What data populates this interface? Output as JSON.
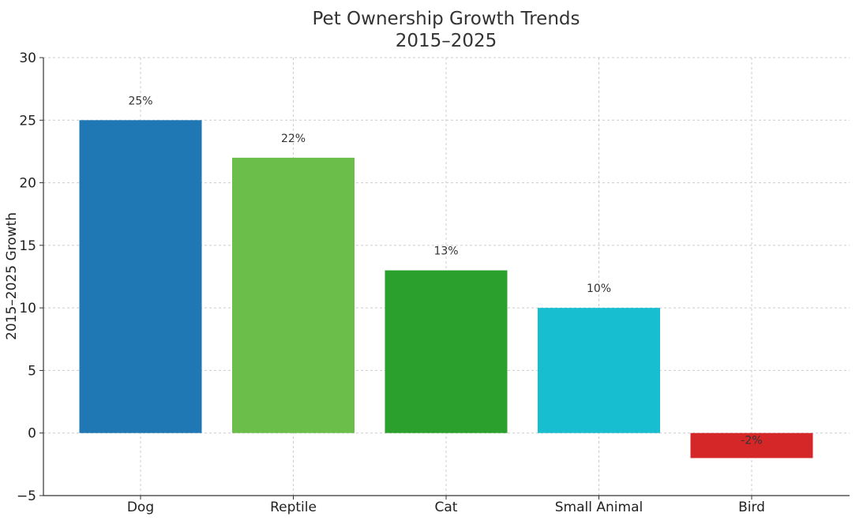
{
  "chart_data": {
    "type": "bar",
    "title": "Pet Ownership Growth Trends",
    "subtitle": "2015–2025",
    "xlabel": "",
    "ylabel": "2015–2025 Growth",
    "categories": [
      "Dog",
      "Reptile",
      "Cat",
      "Small Animal",
      "Bird"
    ],
    "values": [
      25,
      22,
      13,
      10,
      -2
    ],
    "data_labels": [
      "25%",
      "22%",
      "13%",
      "10%",
      "-2%"
    ],
    "colors": [
      "#1f77b4",
      "#6cbe4b",
      "#2ca02c",
      "#17becf",
      "#d62728"
    ],
    "ylim": [
      -5,
      30
    ],
    "yticks": [
      -5,
      0,
      5,
      10,
      15,
      20,
      25,
      30
    ],
    "ytick_labels": [
      "−5",
      "0",
      "5",
      "10",
      "15",
      "20",
      "25",
      "30"
    ],
    "grid": true,
    "legend": "none"
  }
}
